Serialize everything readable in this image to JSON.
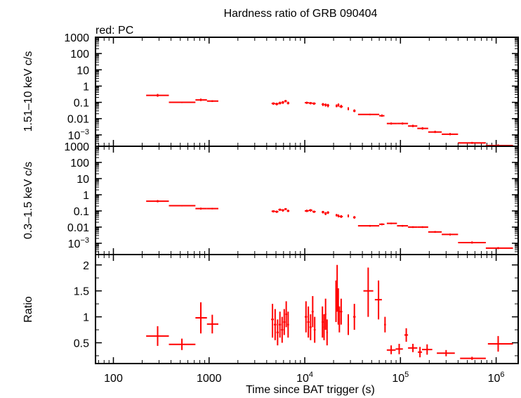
{
  "title": "Hardness ratio of GRB 090404",
  "legend_note": "red: PC",
  "colors": {
    "data": "#ff0000",
    "axes": "#000000"
  },
  "chart_data": [
    {
      "type": "scatter",
      "panel": "top",
      "ylabel": "1.51–10 keV c/s",
      "yscale": "log",
      "ylim": [
        0.0002,
        1000
      ],
      "yticks": [
        {
          "value": 1000,
          "label": "1000"
        },
        {
          "value": 100,
          "label": "100"
        },
        {
          "value": 10,
          "label": "10"
        },
        {
          "value": 1,
          "label": "1"
        },
        {
          "value": 0.1,
          "label": "0.1"
        },
        {
          "value": 0.01,
          "label": "0.01"
        },
        {
          "value": 0.001,
          "label": "10",
          "sup": "−3"
        }
      ],
      "points": [
        {
          "x": 290,
          "xlo": 220,
          "xhi": 380,
          "y": 0.27,
          "ylo": 0.22,
          "yhi": 0.33
        },
        {
          "x": 520,
          "xlo": 380,
          "xhi": 720,
          "y": 0.1,
          "ylo": 0.09,
          "yhi": 0.11
        },
        {
          "x": 820,
          "xlo": 720,
          "xhi": 950,
          "y": 0.14,
          "ylo": 0.12,
          "yhi": 0.17
        },
        {
          "x": 1080,
          "xlo": 950,
          "xhi": 1250,
          "y": 0.12,
          "ylo": 0.105,
          "yhi": 0.135
        },
        {
          "x": 4700,
          "xlo": 4500,
          "xhi": 4900,
          "y": 0.085,
          "ylo": 0.07,
          "yhi": 0.1
        },
        {
          "x": 5100,
          "xlo": 4900,
          "xhi": 5300,
          "y": 0.08,
          "ylo": 0.065,
          "yhi": 0.095
        },
        {
          "x": 5500,
          "xlo": 5300,
          "xhi": 5700,
          "y": 0.09,
          "ylo": 0.075,
          "yhi": 0.11
        },
        {
          "x": 5900,
          "xlo": 5700,
          "xhi": 6100,
          "y": 0.1,
          "ylo": 0.08,
          "yhi": 0.12
        },
        {
          "x": 6300,
          "xlo": 6100,
          "xhi": 6500,
          "y": 0.12,
          "ylo": 0.1,
          "yhi": 0.14
        },
        {
          "x": 6700,
          "xlo": 6500,
          "xhi": 6900,
          "y": 0.09,
          "ylo": 0.075,
          "yhi": 0.11
        },
        {
          "x": 10500,
          "xlo": 10000,
          "xhi": 11000,
          "y": 0.095,
          "ylo": 0.08,
          "yhi": 0.11
        },
        {
          "x": 11500,
          "xlo": 11000,
          "xhi": 12000,
          "y": 0.09,
          "ylo": 0.075,
          "yhi": 0.105
        },
        {
          "x": 12500,
          "xlo": 12000,
          "xhi": 13000,
          "y": 0.085,
          "ylo": 0.07,
          "yhi": 0.1
        },
        {
          "x": 15500,
          "xlo": 15000,
          "xhi": 16000,
          "y": 0.075,
          "ylo": 0.06,
          "yhi": 0.09
        },
        {
          "x": 16500,
          "xlo": 16000,
          "xhi": 17000,
          "y": 0.07,
          "ylo": 0.055,
          "yhi": 0.085
        },
        {
          "x": 17500,
          "xlo": 17000,
          "xhi": 18000,
          "y": 0.065,
          "ylo": 0.05,
          "yhi": 0.08
        },
        {
          "x": 21500,
          "xlo": 21000,
          "xhi": 22000,
          "y": 0.06,
          "ylo": 0.05,
          "yhi": 0.075
        },
        {
          "x": 22500,
          "xlo": 22000,
          "xhi": 23000,
          "y": 0.07,
          "ylo": 0.055,
          "yhi": 0.085
        },
        {
          "x": 24000,
          "xlo": 23000,
          "xhi": 25000,
          "y": 0.055,
          "ylo": 0.045,
          "yhi": 0.07
        },
        {
          "x": 28500,
          "xlo": 28000,
          "xhi": 29000,
          "y": 0.04,
          "ylo": 0.033,
          "yhi": 0.05
        },
        {
          "x": 33000,
          "xlo": 32000,
          "xhi": 34000,
          "y": 0.03,
          "ylo": 0.025,
          "yhi": 0.037
        },
        {
          "x": 48000,
          "xlo": 36000,
          "xhi": 60000,
          "y": 0.018,
          "ylo": 0.016,
          "yhi": 0.02
        },
        {
          "x": 64000,
          "xlo": 60000,
          "xhi": 68000,
          "y": 0.015,
          "ylo": 0.013,
          "yhi": 0.018
        },
        {
          "x": 80000,
          "xlo": 72000,
          "xhi": 92000,
          "y": 0.005,
          "ylo": 0.0043,
          "yhi": 0.0058
        },
        {
          "x": 105000,
          "xlo": 92000,
          "xhi": 120000,
          "y": 0.005,
          "ylo": 0.0043,
          "yhi": 0.0058
        },
        {
          "x": 135000,
          "xlo": 120000,
          "xhi": 150000,
          "y": 0.0035,
          "ylo": 0.003,
          "yhi": 0.0042
        },
        {
          "x": 170000,
          "xlo": 150000,
          "xhi": 195000,
          "y": 0.0025,
          "ylo": 0.0021,
          "yhi": 0.003
        },
        {
          "x": 230000,
          "xlo": 195000,
          "xhi": 270000,
          "y": 0.0015,
          "ylo": 0.0013,
          "yhi": 0.0018
        },
        {
          "x": 330000,
          "xlo": 270000,
          "xhi": 400000,
          "y": 0.0011,
          "ylo": 0.00095,
          "yhi": 0.0013
        },
        {
          "x": 560000,
          "xlo": 400000,
          "xhi": 780000,
          "y": 0.00032,
          "ylo": 0.00028,
          "yhi": 0.00037
        },
        {
          "x": 1050000,
          "xlo": 780000,
          "xhi": 1500000,
          "y": 0.00022,
          "ylo": 0.00019,
          "yhi": 0.00026
        }
      ]
    },
    {
      "type": "scatter",
      "panel": "middle",
      "ylabel": "0.3–1.5 keV c/s",
      "yscale": "log",
      "ylim": [
        0.0002,
        1000
      ],
      "yticks": [
        {
          "value": 1000,
          "label": "1000"
        },
        {
          "value": 100,
          "label": "100"
        },
        {
          "value": 10,
          "label": "10"
        },
        {
          "value": 1,
          "label": "1"
        },
        {
          "value": 0.1,
          "label": "0.1"
        },
        {
          "value": 0.01,
          "label": "0.01"
        },
        {
          "value": 0.001,
          "label": "10",
          "sup": "−3"
        }
      ],
      "points": [
        {
          "x": 290,
          "xlo": 220,
          "xhi": 380,
          "y": 0.4,
          "ylo": 0.34,
          "yhi": 0.47
        },
        {
          "x": 520,
          "xlo": 380,
          "xhi": 720,
          "y": 0.21,
          "ylo": 0.19,
          "yhi": 0.23
        },
        {
          "x": 820,
          "xlo": 720,
          "xhi": 950,
          "y": 0.14,
          "ylo": 0.12,
          "yhi": 0.16
        },
        {
          "x": 1080,
          "xlo": 950,
          "xhi": 1250,
          "y": 0.14,
          "ylo": 0.125,
          "yhi": 0.155
        },
        {
          "x": 4700,
          "xlo": 4500,
          "xhi": 4900,
          "y": 0.095,
          "ylo": 0.08,
          "yhi": 0.11
        },
        {
          "x": 5100,
          "xlo": 4900,
          "xhi": 5300,
          "y": 0.09,
          "ylo": 0.075,
          "yhi": 0.105
        },
        {
          "x": 5500,
          "xlo": 5300,
          "xhi": 5700,
          "y": 0.12,
          "ylo": 0.1,
          "yhi": 0.14
        },
        {
          "x": 5900,
          "xlo": 5700,
          "xhi": 6100,
          "y": 0.11,
          "ylo": 0.09,
          "yhi": 0.13
        },
        {
          "x": 6300,
          "xlo": 6100,
          "xhi": 6500,
          "y": 0.13,
          "ylo": 0.11,
          "yhi": 0.15
        },
        {
          "x": 6700,
          "xlo": 6500,
          "xhi": 6900,
          "y": 0.1,
          "ylo": 0.085,
          "yhi": 0.12
        },
        {
          "x": 10500,
          "xlo": 10000,
          "xhi": 11000,
          "y": 0.1,
          "ylo": 0.085,
          "yhi": 0.12
        },
        {
          "x": 11500,
          "xlo": 11000,
          "xhi": 12000,
          "y": 0.11,
          "ylo": 0.09,
          "yhi": 0.13
        },
        {
          "x": 12500,
          "xlo": 12000,
          "xhi": 13000,
          "y": 0.09,
          "ylo": 0.075,
          "yhi": 0.105
        },
        {
          "x": 15500,
          "xlo": 15000,
          "xhi": 16000,
          "y": 0.085,
          "ylo": 0.07,
          "yhi": 0.1
        },
        {
          "x": 16500,
          "xlo": 16000,
          "xhi": 17000,
          "y": 0.07,
          "ylo": 0.055,
          "yhi": 0.085
        },
        {
          "x": 17500,
          "xlo": 17000,
          "xhi": 18000,
          "y": 0.08,
          "ylo": 0.065,
          "yhi": 0.095
        },
        {
          "x": 21500,
          "xlo": 21000,
          "xhi": 22000,
          "y": 0.055,
          "ylo": 0.045,
          "yhi": 0.065
        },
        {
          "x": 22500,
          "xlo": 22000,
          "xhi": 23000,
          "y": 0.05,
          "ylo": 0.04,
          "yhi": 0.06
        },
        {
          "x": 24000,
          "xlo": 23000,
          "xhi": 25000,
          "y": 0.045,
          "ylo": 0.037,
          "yhi": 0.055
        },
        {
          "x": 28500,
          "xlo": 28000,
          "xhi": 29000,
          "y": 0.05,
          "ylo": 0.04,
          "yhi": 0.06
        },
        {
          "x": 33000,
          "xlo": 32000,
          "xhi": 34000,
          "y": 0.04,
          "ylo": 0.033,
          "yhi": 0.048
        },
        {
          "x": 48000,
          "xlo": 36000,
          "xhi": 60000,
          "y": 0.012,
          "ylo": 0.0105,
          "yhi": 0.0135
        },
        {
          "x": 64000,
          "xlo": 60000,
          "xhi": 68000,
          "y": 0.015,
          "ylo": 0.013,
          "yhi": 0.017
        },
        {
          "x": 80000,
          "xlo": 72000,
          "xhi": 92000,
          "y": 0.017,
          "ylo": 0.015,
          "yhi": 0.019
        },
        {
          "x": 105000,
          "xlo": 92000,
          "xhi": 120000,
          "y": 0.012,
          "ylo": 0.0105,
          "yhi": 0.0135
        },
        {
          "x": 135000,
          "xlo": 120000,
          "xhi": 150000,
          "y": 0.01,
          "ylo": 0.0088,
          "yhi": 0.0113
        },
        {
          "x": 170000,
          "xlo": 150000,
          "xhi": 195000,
          "y": 0.01,
          "ylo": 0.0088,
          "yhi": 0.0113
        },
        {
          "x": 230000,
          "xlo": 195000,
          "xhi": 270000,
          "y": 0.005,
          "ylo": 0.0044,
          "yhi": 0.0057
        },
        {
          "x": 330000,
          "xlo": 270000,
          "xhi": 400000,
          "y": 0.0035,
          "ylo": 0.003,
          "yhi": 0.004
        },
        {
          "x": 560000,
          "xlo": 400000,
          "xhi": 780000,
          "y": 0.0011,
          "ylo": 0.00095,
          "yhi": 0.0013
        },
        {
          "x": 1050000,
          "xlo": 780000,
          "xhi": 1500000,
          "y": 0.0005,
          "ylo": 0.00043,
          "yhi": 0.00058
        }
      ]
    },
    {
      "type": "scatter",
      "panel": "bottom",
      "ylabel": "Ratio",
      "xlabel": "Time since BAT trigger (s)",
      "yscale": "linear",
      "ylim": [
        0.1,
        2.2
      ],
      "yticks": [
        {
          "value": 2,
          "label": "2"
        },
        {
          "value": 1.5,
          "label": "1.5"
        },
        {
          "value": 1,
          "label": "1"
        },
        {
          "value": 0.5,
          "label": "0.5"
        }
      ],
      "xscale": "log",
      "xlim": [
        65,
        1700000
      ],
      "xticks": [
        {
          "value": 100,
          "label": "100"
        },
        {
          "value": 1000,
          "label": "1000"
        },
        {
          "value": 10000,
          "label": "10",
          "sup": "4"
        },
        {
          "value": 100000,
          "label": "10",
          "sup": "5"
        },
        {
          "value": 1000000,
          "label": "10",
          "sup": "6"
        }
      ],
      "points": [
        {
          "x": 290,
          "xlo": 220,
          "xhi": 380,
          "y": 0.63,
          "ylo": 0.44,
          "yhi": 0.82
        },
        {
          "x": 520,
          "xlo": 380,
          "xhi": 720,
          "y": 0.47,
          "ylo": 0.36,
          "yhi": 0.58
        },
        {
          "x": 820,
          "xlo": 720,
          "xhi": 950,
          "y": 0.98,
          "ylo": 0.68,
          "yhi": 1.28
        },
        {
          "x": 1080,
          "xlo": 950,
          "xhi": 1250,
          "y": 0.86,
          "ylo": 0.68,
          "yhi": 1.04
        },
        {
          "x": 4600,
          "xlo": 4450,
          "xhi": 4750,
          "y": 0.95,
          "ylo": 0.6,
          "yhi": 1.25
        },
        {
          "x": 4900,
          "xlo": 4750,
          "xhi": 5050,
          "y": 0.85,
          "ylo": 0.55,
          "yhi": 1.15
        },
        {
          "x": 5200,
          "xlo": 5050,
          "xhi": 5350,
          "y": 0.7,
          "ylo": 0.45,
          "yhi": 0.95
        },
        {
          "x": 5500,
          "xlo": 5350,
          "xhi": 5650,
          "y": 0.85,
          "ylo": 0.6,
          "yhi": 1.1
        },
        {
          "x": 5800,
          "xlo": 5650,
          "xhi": 5950,
          "y": 0.75,
          "ylo": 0.5,
          "yhi": 1.0
        },
        {
          "x": 6100,
          "xlo": 5950,
          "xhi": 6250,
          "y": 0.9,
          "ylo": 0.65,
          "yhi": 1.15
        },
        {
          "x": 6400,
          "xlo": 6250,
          "xhi": 6550,
          "y": 1.05,
          "ylo": 0.8,
          "yhi": 1.3
        },
        {
          "x": 6700,
          "xlo": 6550,
          "xhi": 6850,
          "y": 0.85,
          "ylo": 0.6,
          "yhi": 1.1
        },
        {
          "x": 10300,
          "xlo": 10000,
          "xhi": 10600,
          "y": 1.0,
          "ylo": 0.7,
          "yhi": 1.3
        },
        {
          "x": 10900,
          "xlo": 10600,
          "xhi": 11200,
          "y": 0.9,
          "ylo": 0.6,
          "yhi": 1.2
        },
        {
          "x": 11500,
          "xlo": 11200,
          "xhi": 11800,
          "y": 0.8,
          "ylo": 0.55,
          "yhi": 1.05
        },
        {
          "x": 12100,
          "xlo": 11800,
          "xhi": 12400,
          "y": 1.1,
          "ylo": 0.8,
          "yhi": 1.4
        },
        {
          "x": 12700,
          "xlo": 12400,
          "xhi": 13000,
          "y": 0.75,
          "ylo": 0.5,
          "yhi": 1.0
        },
        {
          "x": 15300,
          "xlo": 15000,
          "xhi": 15600,
          "y": 0.9,
          "ylo": 0.6,
          "yhi": 1.2
        },
        {
          "x": 15900,
          "xlo": 15600,
          "xhi": 16200,
          "y": 0.8,
          "ylo": 0.55,
          "yhi": 1.05
        },
        {
          "x": 16500,
          "xlo": 16200,
          "xhi": 16800,
          "y": 1.05,
          "ylo": 0.75,
          "yhi": 1.35
        },
        {
          "x": 17100,
          "xlo": 16800,
          "xhi": 17400,
          "y": 0.7,
          "ylo": 0.45,
          "yhi": 0.95
        },
        {
          "x": 21200,
          "xlo": 20900,
          "xhi": 21500,
          "y": 1.3,
          "ylo": 0.9,
          "yhi": 1.7
        },
        {
          "x": 21800,
          "xlo": 21500,
          "xhi": 22100,
          "y": 1.55,
          "ylo": 1.1,
          "yhi": 2.0
        },
        {
          "x": 22400,
          "xlo": 22100,
          "xhi": 22700,
          "y": 1.2,
          "ylo": 0.85,
          "yhi": 1.55
        },
        {
          "x": 23000,
          "xlo": 22700,
          "xhi": 23300,
          "y": 0.95,
          "ylo": 0.7,
          "yhi": 1.2
        },
        {
          "x": 24000,
          "xlo": 23300,
          "xhi": 24700,
          "y": 1.1,
          "ylo": 0.85,
          "yhi": 1.35
        },
        {
          "x": 28500,
          "xlo": 28000,
          "xhi": 29000,
          "y": 0.85,
          "ylo": 0.65,
          "yhi": 1.05
        },
        {
          "x": 33000,
          "xlo": 32000,
          "xhi": 34000,
          "y": 1.0,
          "ylo": 0.75,
          "yhi": 1.25
        },
        {
          "x": 46000,
          "xlo": 41000,
          "xhi": 52000,
          "y": 1.5,
          "ylo": 1.0,
          "yhi": 1.95
        },
        {
          "x": 59000,
          "xlo": 54000,
          "xhi": 64000,
          "y": 1.33,
          "ylo": 0.95,
          "yhi": 1.7
        },
        {
          "x": 69000,
          "xlo": 67500,
          "xhi": 70500,
          "y": 0.85,
          "ylo": 0.7,
          "yhi": 1.0
        },
        {
          "x": 80000,
          "xlo": 72000,
          "xhi": 89000,
          "y": 0.36,
          "ylo": 0.28,
          "yhi": 0.45
        },
        {
          "x": 97000,
          "xlo": 89000,
          "xhi": 106000,
          "y": 0.38,
          "ylo": 0.28,
          "yhi": 0.48
        },
        {
          "x": 115000,
          "xlo": 110000,
          "xhi": 120000,
          "y": 0.65,
          "ylo": 0.52,
          "yhi": 0.78
        },
        {
          "x": 135000,
          "xlo": 120000,
          "xhi": 150000,
          "y": 0.4,
          "ylo": 0.32,
          "yhi": 0.48
        },
        {
          "x": 160000,
          "xlo": 152000,
          "xhi": 168000,
          "y": 0.32,
          "ylo": 0.22,
          "yhi": 0.42
        },
        {
          "x": 190000,
          "xlo": 168000,
          "xhi": 215000,
          "y": 0.37,
          "ylo": 0.27,
          "yhi": 0.47
        },
        {
          "x": 300000,
          "xlo": 240000,
          "xhi": 370000,
          "y": 0.3,
          "ylo": 0.24,
          "yhi": 0.36
        },
        {
          "x": 560000,
          "xlo": 420000,
          "xhi": 780000,
          "y": 0.2,
          "ylo": 0.17,
          "yhi": 0.23
        },
        {
          "x": 1050000,
          "xlo": 820000,
          "xhi": 1500000,
          "y": 0.48,
          "ylo": 0.33,
          "yhi": 0.63
        }
      ]
    }
  ]
}
